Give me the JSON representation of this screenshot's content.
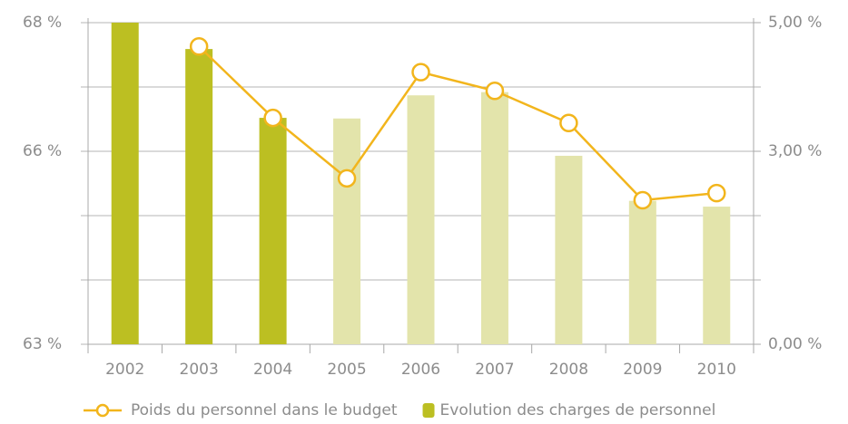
{
  "chart_data": {
    "type": "bar_line",
    "categories": [
      "2002",
      "2003",
      "2004",
      "2005",
      "2006",
      "2007",
      "2008",
      "2009",
      "2010"
    ],
    "series": [
      {
        "name": "Poids du personnel dans le budget",
        "type": "line",
        "color": "#f2b51c",
        "axis": "y",
        "values": [
          null,
          67.63,
          66.52,
          65.58,
          67.23,
          66.94,
          66.44,
          65.24,
          65.35
        ]
      },
      {
        "name": "Evolution des charges de personnel",
        "type": "bar",
        "color": "#bcbf22",
        "axis": "y2",
        "bar_colors": [
          "#bcbf22",
          "#bcbf22",
          "#bcbf22",
          "#e3e4ab",
          "#e3e4ab",
          "#e3e4ab",
          "#e3e4ab",
          "#e3e4ab",
          "#e3e4ab"
        ],
        "values": [
          5.0,
          4.59,
          3.52,
          3.51,
          3.87,
          3.92,
          2.93,
          2.23,
          2.14
        ]
      }
    ],
    "ylim": [
      63,
      68
    ],
    "yticks": [
      {
        "value": 63,
        "label": "63 %"
      },
      {
        "value": 66,
        "label": "66 %"
      },
      {
        "value": 68,
        "label": "68 %"
      }
    ],
    "minor_gridlines": [
      64,
      65,
      67
    ],
    "y2lim": [
      0,
      5
    ],
    "y2ticks": [
      {
        "value": 0,
        "label": "0,00 %"
      },
      {
        "value": 3,
        "label": "3,00 %"
      },
      {
        "value": 5,
        "label": "5,00 %"
      }
    ],
    "grid": true,
    "legend": "bottom"
  }
}
